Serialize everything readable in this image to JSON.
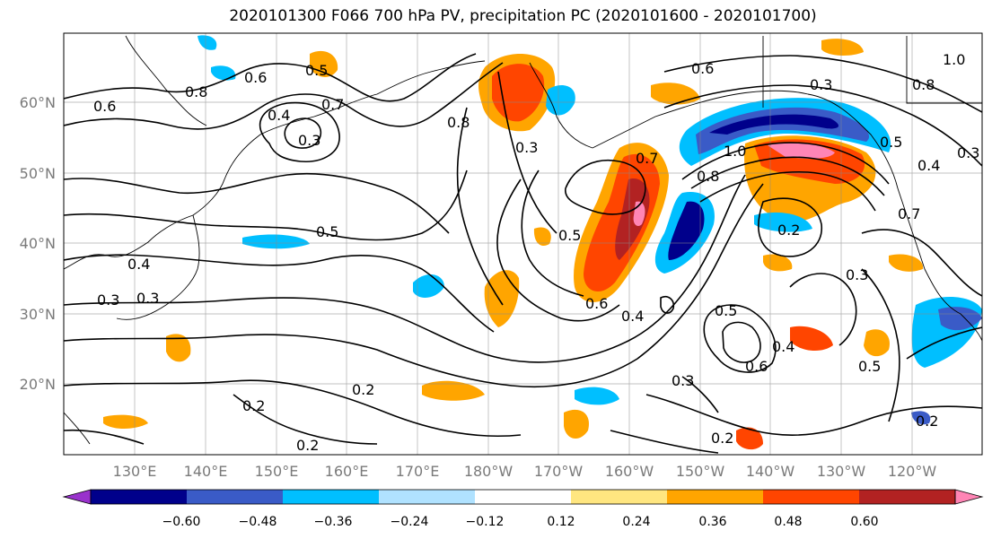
{
  "title": "2020101300 F066 700 hPa PV, precipitation PC (2020101600 - 2020101700)",
  "lat_labels": [
    "60°N",
    "50°N",
    "40°N",
    "30°N",
    "20°N"
  ],
  "lon_labels": [
    "130°E",
    "140°E",
    "150°E",
    "160°E",
    "170°E",
    "180°W",
    "170°W",
    "160°W",
    "150°W",
    "140°W",
    "130°W",
    "120°W"
  ],
  "colorbar": {
    "labels": [
      "−0.60",
      "−0.48",
      "−0.36",
      "−0.24",
      "−0.12",
      "0.12",
      "0.24",
      "0.36",
      "0.48",
      "0.60"
    ],
    "colors": [
      "#9932cc",
      "#00008b",
      "#3a5bc7",
      "#00bfff",
      "#b0e2ff",
      "#ffffff",
      "#ffe680",
      "#ffa500",
      "#ff4500",
      "#b22222",
      "#ff85b5"
    ]
  },
  "contour_labels": [
    "0.6",
    "0.8",
    "0.6",
    "0.4",
    "0.7",
    "0.5",
    "0.3",
    "0.8",
    "0.3",
    "0.5",
    "0.4",
    "0.3",
    "0.5",
    "0.7",
    "0.6",
    "0.8",
    "1.0",
    "0.3",
    "0.5",
    "0.4",
    "1.0",
    "0.8",
    "0.7",
    "0.3",
    "0.6",
    "0.4",
    "0.2",
    "0.5",
    "0.4",
    "0.6",
    "0.3",
    "0.5",
    "0.3",
    "0.2",
    "0.2",
    "0.2",
    "0.2",
    "0.3",
    "0.2"
  ]
}
